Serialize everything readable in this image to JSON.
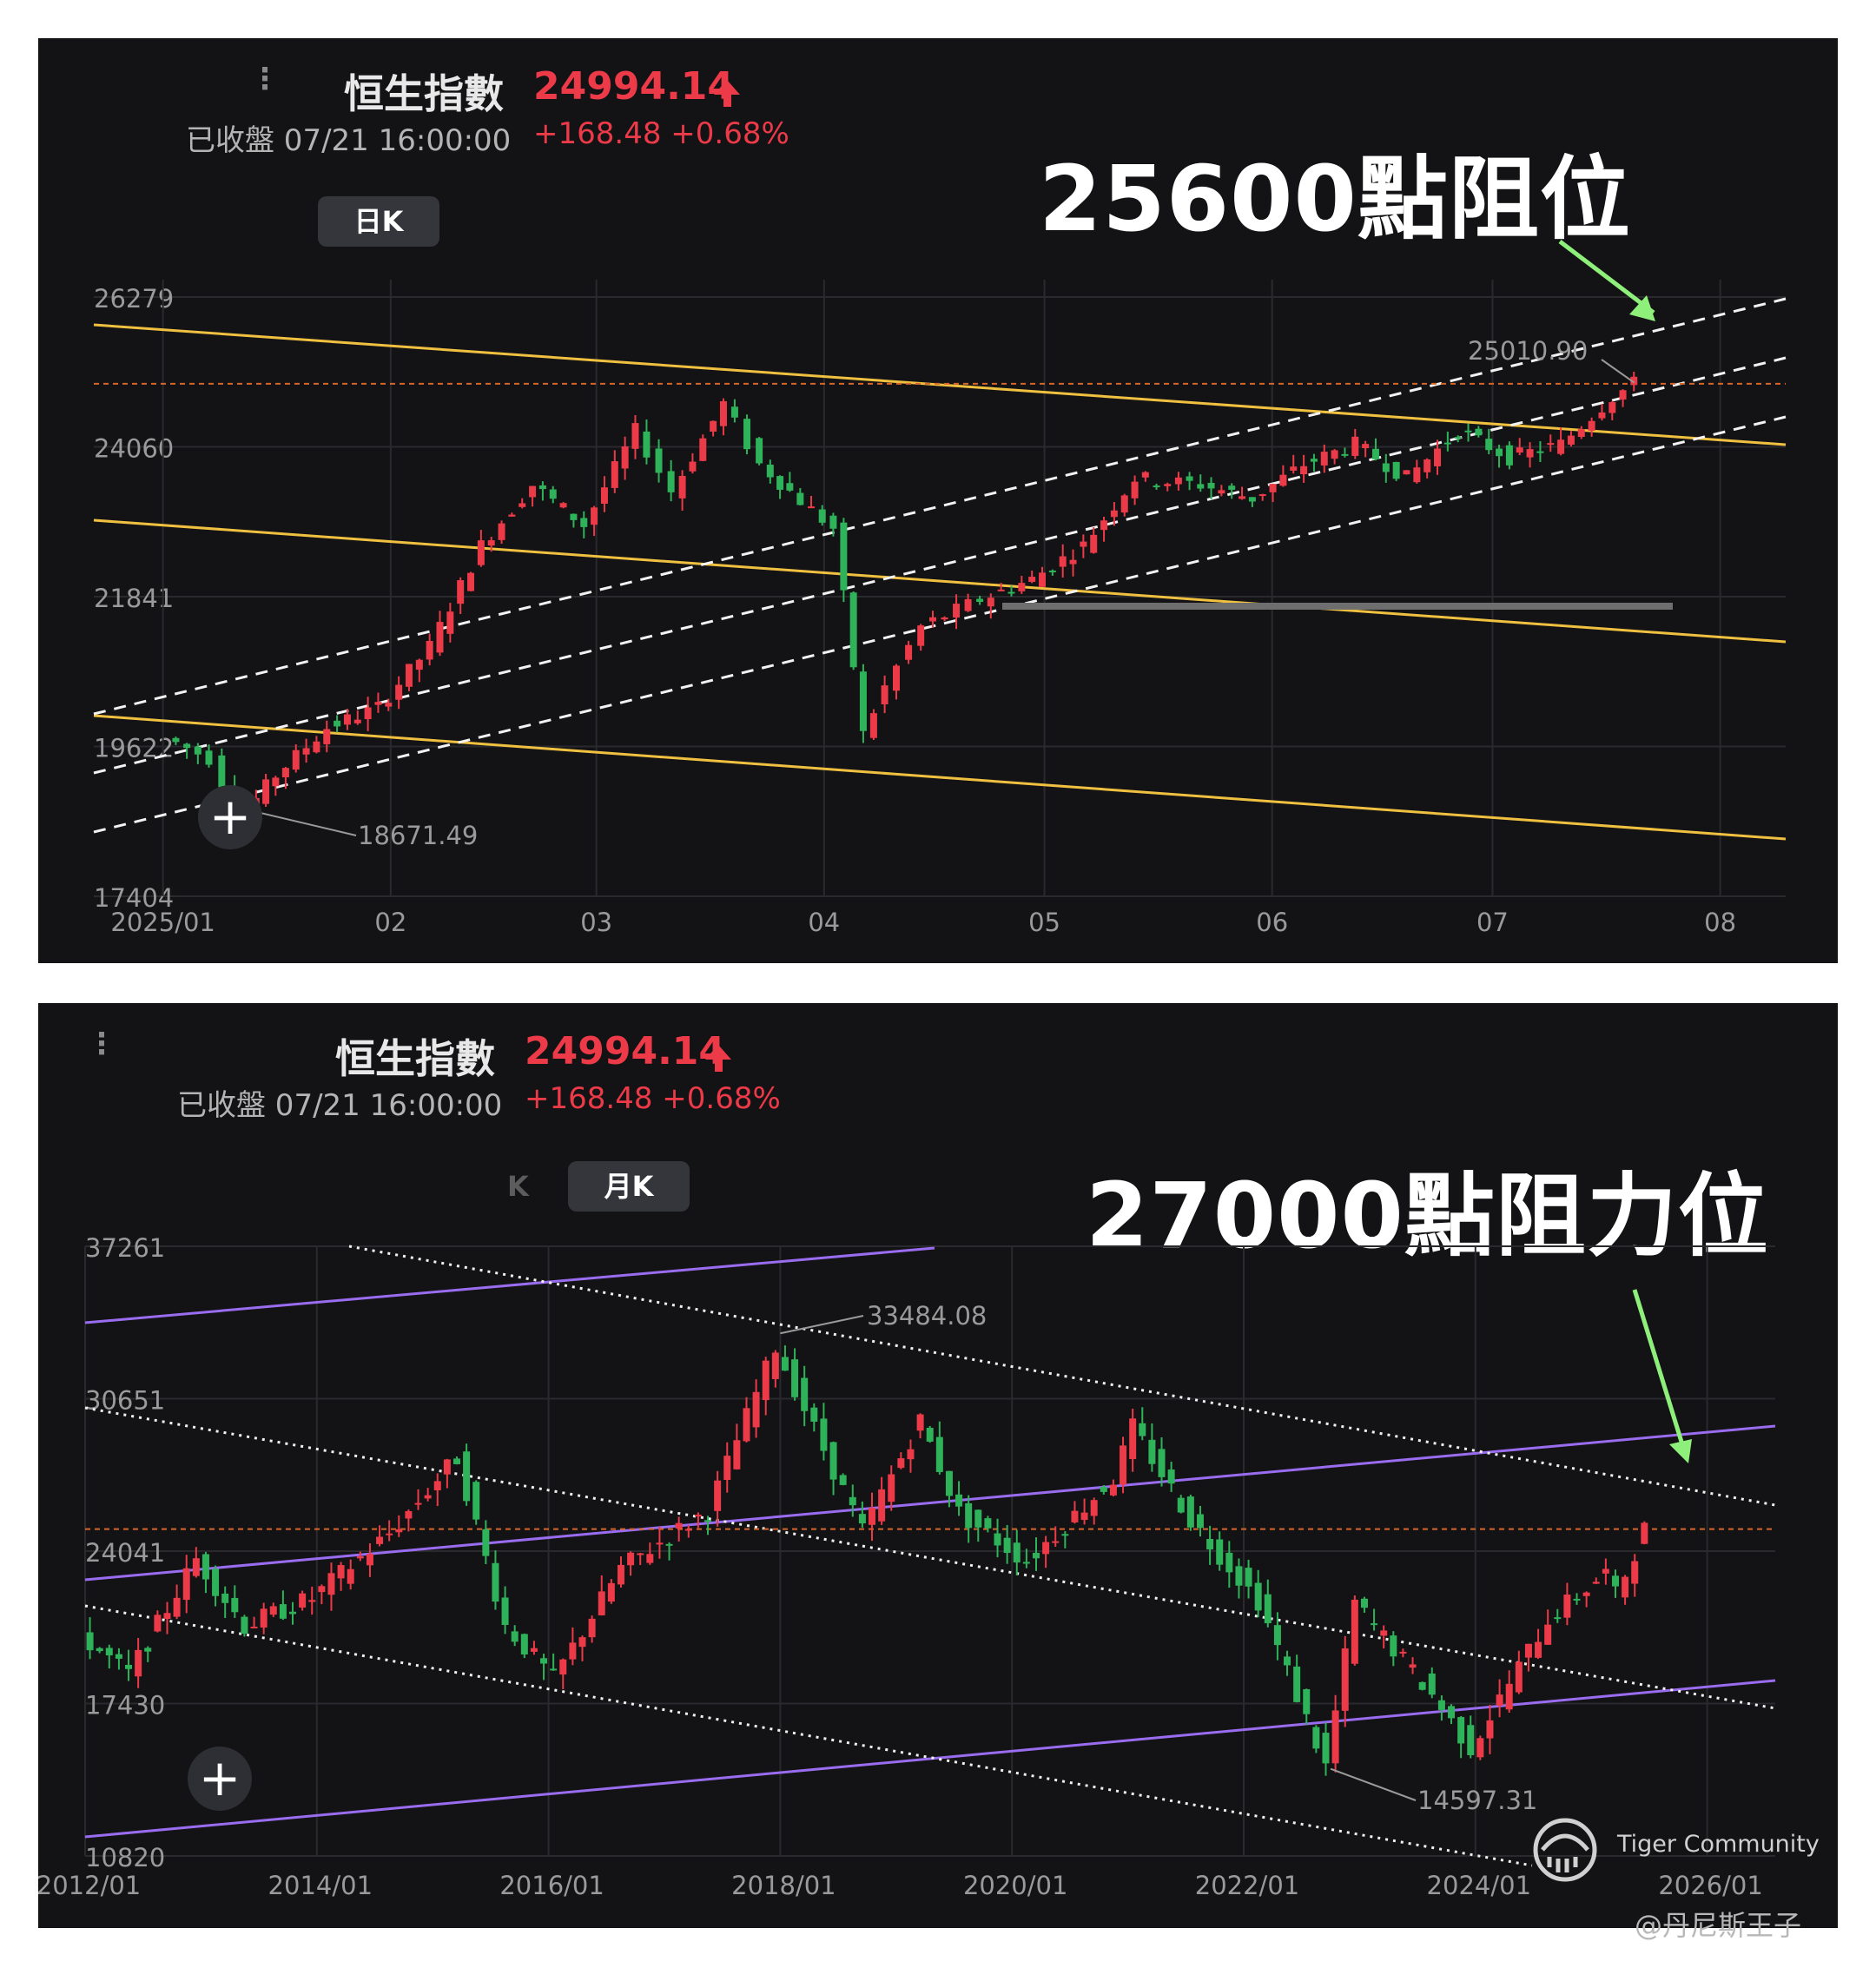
{
  "top": {
    "index_name": "恒生指數",
    "price": "24994.14",
    "status": "已收盤 07/21 16:00:00",
    "change": "+168.48 +0.68%",
    "period": "日K",
    "annotation": "25600點阻位",
    "high_label": "25010.90",
    "low_label": "18671.49"
  },
  "bottom": {
    "index_name": "恒生指數",
    "price": "24994.14",
    "status": "已收盤 07/21 16:00:00",
    "change": "+168.48 +0.68%",
    "period": "月K",
    "annotation": "27000點阻力位",
    "high_label": "33484.08",
    "low_label": "14597.31"
  },
  "watermark": {
    "text": "Tiger Community"
  },
  "credit": "@丹尼斯王子",
  "colors": {
    "up": "#ec3a48",
    "down": "#2fb35a",
    "yellow_channel": "#f0c040",
    "purple_channel": "#9a6cf0",
    "price_line": "#d8662a",
    "annotation_arrow": "#8ef07a"
  },
  "chart_data": [
    {
      "type": "candlestick",
      "title": "恒生指數 日K",
      "y_ticks": [
        26279,
        24060,
        21841,
        19622,
        17404
      ],
      "ylim": [
        17404,
        26279
      ],
      "x_ticks": [
        "2025/01",
        "02",
        "03",
        "04",
        "05",
        "06",
        "07",
        "08"
      ],
      "last_close": 24994.14,
      "marked_high": 25010.9,
      "marked_low": 18671.49,
      "path": [
        [
          "2025/01/02",
          19750
        ],
        [
          "2025/01/08",
          19450
        ],
        [
          "2025/01/10",
          19100
        ],
        [
          "2025/01/13",
          18671
        ],
        [
          "2025/01/17",
          19200
        ],
        [
          "2025/01/24",
          19900
        ],
        [
          "2025/01/31",
          20200
        ],
        [
          "2025/02/07",
          21100
        ],
        [
          "2025/02/14",
          22600
        ],
        [
          "2025/02/21",
          23500
        ],
        [
          "2025/02/28",
          22900
        ],
        [
          "2025/03/07",
          24300
        ],
        [
          "2025/03/12",
          23400
        ],
        [
          "2025/03/19",
          24700
        ],
        [
          "2025/03/24",
          23800
        ],
        [
          "2025/03/28",
          23400
        ],
        [
          "2025/04/03",
          22850
        ],
        [
          "2025/04/07",
          19800
        ],
        [
          "2025/04/10",
          20500
        ],
        [
          "2025/04/15",
          21400
        ],
        [
          "2025/04/23",
          21800
        ],
        [
          "2025/04/30",
          22100
        ],
        [
          "2025/05/07",
          22600
        ],
        [
          "2025/05/14",
          23600
        ],
        [
          "2025/05/23",
          23500
        ],
        [
          "2025/05/30",
          23300
        ],
        [
          "2025/06/06",
          23800
        ],
        [
          "2025/06/13",
          24100
        ],
        [
          "2025/06/20",
          23600
        ],
        [
          "2025/06/27",
          24300
        ],
        [
          "2025/07/04",
          23900
        ],
        [
          "2025/07/11",
          24100
        ],
        [
          "2025/07/18",
          24800
        ],
        [
          "2025/07/21",
          24994
        ]
      ],
      "annotation_text": "25600點阻位"
    },
    {
      "type": "candlestick",
      "title": "恒生指數 月K",
      "y_ticks": [
        37261,
        30651,
        24041,
        17430,
        10820
      ],
      "ylim": [
        10820,
        37261
      ],
      "x_ticks": [
        "2012/01",
        "2014/01",
        "2016/01",
        "2018/01",
        "2020/01",
        "2022/01",
        "2024/01",
        "2026/01"
      ],
      "last_close": 24994.14,
      "marked_high": 33484.08,
      "marked_low": 14597.31,
      "path": [
        [
          "2012/01",
          20400
        ],
        [
          "2012/06",
          18700
        ],
        [
          "2013/01",
          23700
        ],
        [
          "2013/06",
          20800
        ],
        [
          "2014/01",
          22000
        ],
        [
          "2014/09",
          24800
        ],
        [
          "2015/04",
          28100
        ],
        [
          "2015/09",
          20800
        ],
        [
          "2016/02",
          18500
        ],
        [
          "2016/09",
          23300
        ],
        [
          "2017/06",
          25800
        ],
        [
          "2018/01",
          32900
        ],
        [
          "2018/10",
          24900
        ],
        [
          "2019/04",
          29700
        ],
        [
          "2019/08",
          25700
        ],
        [
          "2020/03",
          23600
        ],
        [
          "2020/12",
          27200
        ],
        [
          "2021/02",
          29400
        ],
        [
          "2021/08",
          25400
        ],
        [
          "2022/03",
          21900
        ],
        [
          "2022/10",
          14700
        ],
        [
          "2023/01",
          21800
        ],
        [
          "2023/09",
          17800
        ],
        [
          "2024/01",
          15500
        ],
        [
          "2024/09",
          21100
        ],
        [
          "2025/03",
          23100
        ],
        [
          "2025/04",
          22100
        ],
        [
          "2025/07",
          24994
        ]
      ],
      "annotation_text": "27000點阻力位"
    }
  ]
}
